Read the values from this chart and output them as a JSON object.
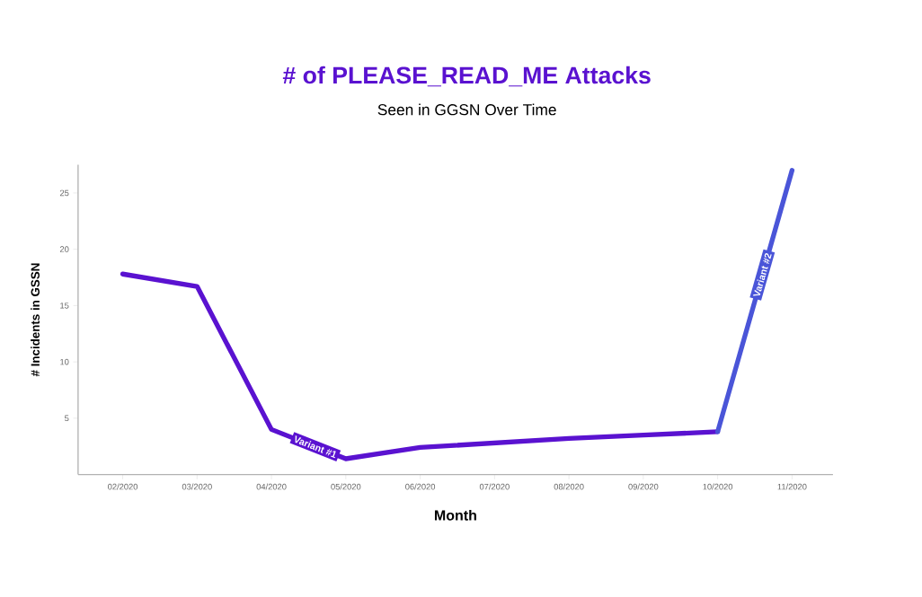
{
  "chart_data": {
    "type": "line",
    "title": "# of PLEASE_READ_ME Attacks",
    "subtitle": "Seen in GGSN Over Time",
    "xlabel": "Month",
    "ylabel": "# Incidents in GSSN",
    "categories": [
      "02/2020",
      "03/2020",
      "04/2020",
      "05/2020",
      "06/2020",
      "07/2020",
      "08/2020",
      "09/2020",
      "10/2020",
      "11/2020"
    ],
    "series": [
      {
        "name": "Variant #1",
        "color": "#5a12d0",
        "values": [
          17.8,
          16.7,
          4.0,
          1.4,
          2.4,
          2.8,
          3.2,
          3.5,
          3.8,
          null
        ]
      },
      {
        "name": "Variant #2",
        "color": "#4a55d8",
        "values": [
          null,
          null,
          null,
          null,
          null,
          null,
          null,
          null,
          3.8,
          27
        ]
      }
    ],
    "ylim": [
      0,
      27.5
    ],
    "yticks": [
      5,
      10,
      15,
      20,
      25
    ],
    "grid": false,
    "legend": false,
    "marker": "none",
    "line_style": "solid"
  }
}
